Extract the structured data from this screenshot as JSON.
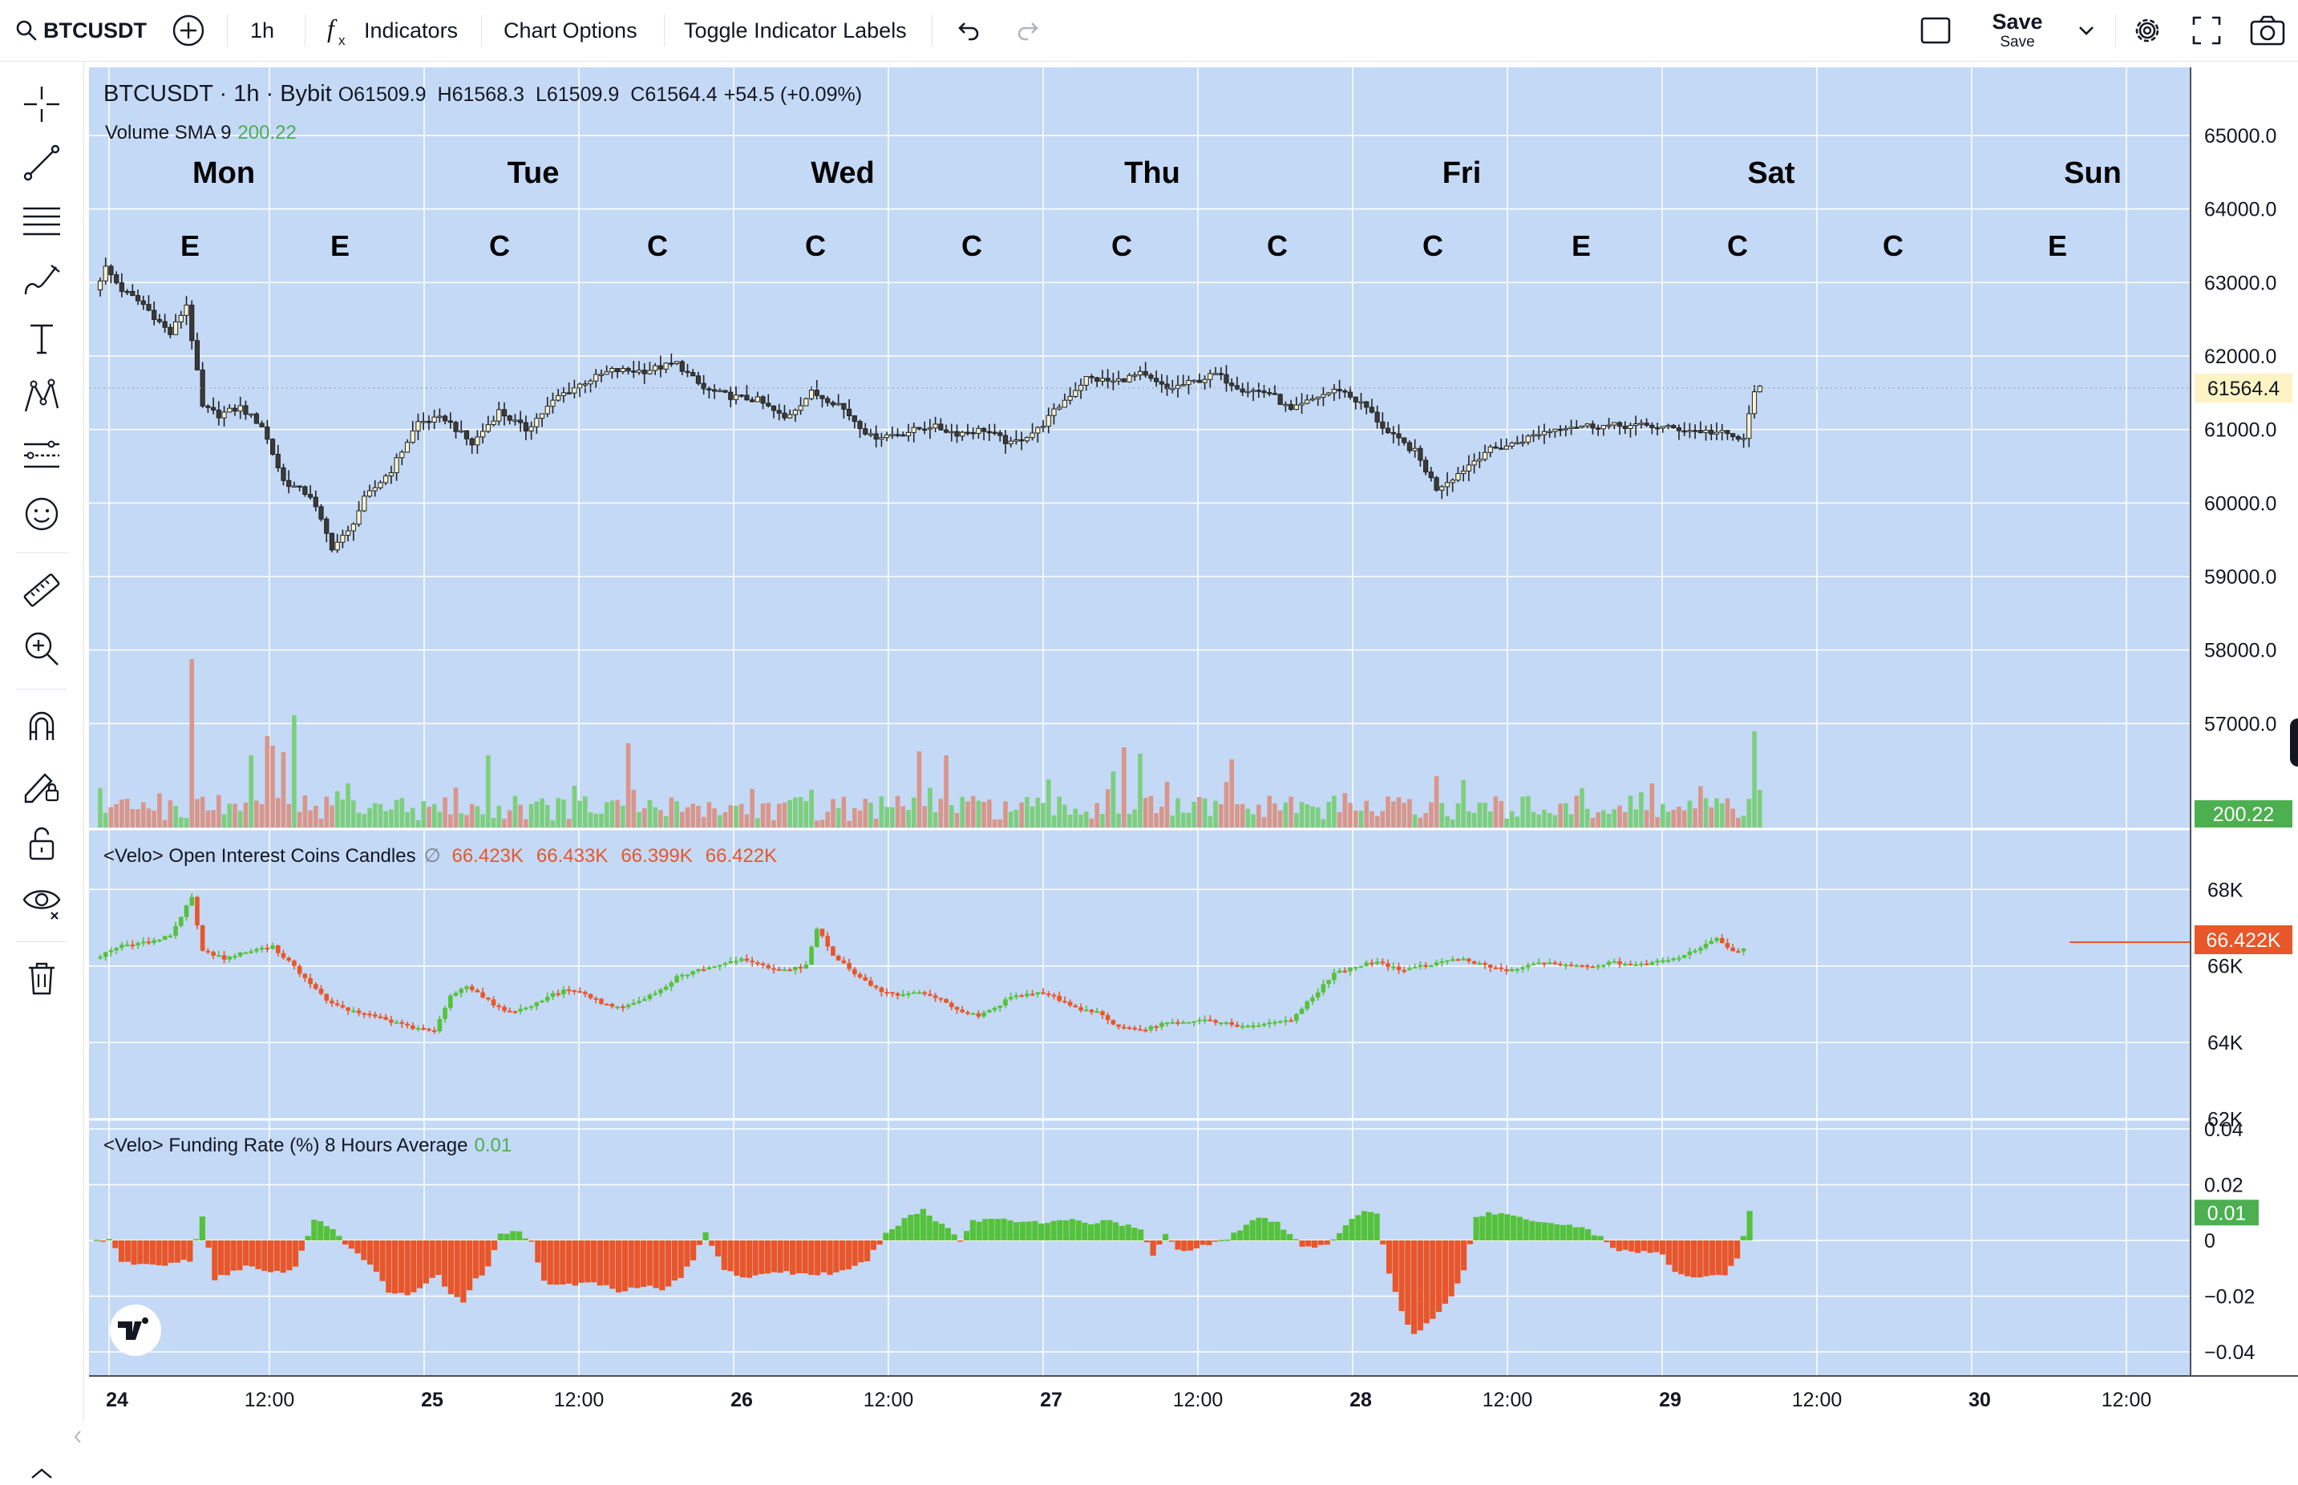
{
  "toolbar": {
    "symbol": "BTCUSDT",
    "interval": "1h",
    "indicators_label": "Indicators",
    "chart_options_label": "Chart Options",
    "toggle_labels_label": "Toggle Indicator Labels",
    "save_label": "Save",
    "save_sub_label": "Save"
  },
  "legend": {
    "main": {
      "title": "BTCUSDT · 1h · Bybit",
      "o_label": "O",
      "o_value": "61509.9",
      "h_label": "H",
      "h_value": "61568.3",
      "l_label": "L",
      "l_value": "61509.9",
      "c_label": "C",
      "c_value": "61564.4",
      "change": "+54.5 (+0.09%)"
    },
    "volume": {
      "label": "Volume  SMA 9",
      "value": "200.22"
    },
    "oi": {
      "label": "<Velo> Open Interest  Coins Candles",
      "flag": "∅",
      "o": "66.423K",
      "h": "66.433K",
      "l": "66.399K",
      "c": "66.422K"
    },
    "funding": {
      "label": "<Velo> Funding Rate (%) 8 Hours Average",
      "value": "0.01"
    }
  },
  "colors": {
    "background": "#c4d9f5",
    "grid": "#ffffff",
    "up_candle": "#faf3d0",
    "down_candle": "#3a3a3a",
    "volume_up": "#7ccf7c",
    "volume_down": "#d9968a",
    "oi_up": "#55c23b",
    "oi_down": "#e8562a",
    "funding_pos": "#55c23b",
    "funding_neg": "#e8562a",
    "price_label_bg": "#fdf3c4",
    "value_green": "#4caf50",
    "value_orange": "#e8562a"
  },
  "chart_data": {
    "type": "candlestick",
    "day_labels": [
      "Mon",
      "Tue",
      "Wed",
      "Thu",
      "Fri",
      "Sat",
      "Sun"
    ],
    "session_markers": [
      "E",
      "E",
      "C",
      "C",
      "C",
      "C",
      "C",
      "C",
      "C",
      "E",
      "C",
      "C",
      "E"
    ],
    "x_tick_labels": [
      "24",
      "12:00",
      "25",
      "12:00",
      "26",
      "12:00",
      "27",
      "12:00",
      "28",
      "12:00",
      "29",
      "12:00",
      "30",
      "12:00"
    ],
    "price_axis": {
      "ticks": [
        "65000.0",
        "64000.0",
        "63000.0",
        "62000.0",
        "61000.0",
        "60000.0",
        "59000.0",
        "58000.0",
        "57000.0"
      ],
      "ylim": [
        56000,
        65600
      ],
      "last_price": "61564.4"
    },
    "volume": {
      "last": "200.22"
    },
    "open_interest": {
      "ticks": [
        "68K",
        "66K",
        "64K",
        "62K"
      ],
      "ylim": [
        61700,
        69200
      ],
      "last": "66.422K"
    },
    "funding_rate": {
      "ticks": [
        "0.04",
        "0.02",
        "0",
        "−0.02",
        "−0.04"
      ],
      "ylim": [
        -0.04,
        0.04
      ],
      "last": "0.01"
    },
    "price_anchors": [
      [
        0,
        62900
      ],
      [
        2,
        63200
      ],
      [
        5,
        62900
      ],
      [
        9,
        62700
      ],
      [
        14,
        62300
      ],
      [
        17,
        62700
      ],
      [
        20,
        61300
      ],
      [
        23,
        61200
      ],
      [
        27,
        61300
      ],
      [
        31,
        61050
      ],
      [
        35,
        60300
      ],
      [
        40,
        60100
      ],
      [
        44,
        59400
      ],
      [
        47,
        59600
      ],
      [
        50,
        60050
      ],
      [
        55,
        60450
      ],
      [
        60,
        61100
      ],
      [
        65,
        61150
      ],
      [
        70,
        60800
      ],
      [
        75,
        61250
      ],
      [
        80,
        61000
      ],
      [
        86,
        61450
      ],
      [
        91,
        61650
      ],
      [
        96,
        61800
      ],
      [
        102,
        61800
      ],
      [
        108,
        61900
      ],
      [
        113,
        61550
      ],
      [
        118,
        61450
      ],
      [
        123,
        61400
      ],
      [
        128,
        61150
      ],
      [
        133,
        61500
      ],
      [
        138,
        61350
      ],
      [
        144,
        60900
      ],
      [
        150,
        60950
      ],
      [
        155,
        61050
      ],
      [
        160,
        60950
      ],
      [
        165,
        61000
      ],
      [
        170,
        60800
      ],
      [
        175,
        61000
      ],
      [
        180,
        61400
      ],
      [
        184,
        61700
      ],
      [
        189,
        61650
      ],
      [
        194,
        61750
      ],
      [
        199,
        61550
      ],
      [
        204,
        61650
      ],
      [
        208,
        61750
      ],
      [
        213,
        61550
      ],
      [
        218,
        61500
      ],
      [
        222,
        61250
      ],
      [
        227,
        61450
      ],
      [
        231,
        61550
      ],
      [
        236,
        61300
      ],
      [
        240,
        60950
      ],
      [
        245,
        60700
      ],
      [
        249,
        60200
      ],
      [
        253,
        60400
      ],
      [
        258,
        60700
      ],
      [
        263,
        60800
      ],
      [
        268,
        60950
      ],
      [
        273,
        61050
      ],
      [
        280,
        61050
      ],
      [
        288,
        61050
      ],
      [
        295,
        61000
      ],
      [
        302,
        60950
      ],
      [
        306,
        60850
      ],
      [
        308,
        61550
      ]
    ],
    "oi_anchors": [
      [
        0,
        66200
      ],
      [
        4,
        66500
      ],
      [
        9,
        66600
      ],
      [
        14,
        66800
      ],
      [
        18,
        67800
      ],
      [
        20,
        66400
      ],
      [
        24,
        66200
      ],
      [
        29,
        66400
      ],
      [
        33,
        66500
      ],
      [
        37,
        66000
      ],
      [
        40,
        65500
      ],
      [
        44,
        65000
      ],
      [
        48,
        64800
      ],
      [
        52,
        64700
      ],
      [
        56,
        64500
      ],
      [
        60,
        64350
      ],
      [
        63,
        64300
      ],
      [
        66,
        65200
      ],
      [
        69,
        65500
      ],
      [
        73,
        65100
      ],
      [
        76,
        64800
      ],
      [
        80,
        64900
      ],
      [
        84,
        65200
      ],
      [
        88,
        65400
      ],
      [
        92,
        65200
      ],
      [
        96,
        64900
      ],
      [
        100,
        65000
      ],
      [
        104,
        65300
      ],
      [
        108,
        65700
      ],
      [
        112,
        65900
      ],
      [
        116,
        66000
      ],
      [
        120,
        66200
      ],
      [
        124,
        66000
      ],
      [
        128,
        65900
      ],
      [
        132,
        66000
      ],
      [
        134,
        67000
      ],
      [
        137,
        66300
      ],
      [
        141,
        65800
      ],
      [
        145,
        65400
      ],
      [
        149,
        65200
      ],
      [
        153,
        65300
      ],
      [
        157,
        65100
      ],
      [
        161,
        64800
      ],
      [
        164,
        64700
      ],
      [
        167,
        64900
      ],
      [
        170,
        65200
      ],
      [
        174,
        65300
      ],
      [
        178,
        65200
      ],
      [
        182,
        64900
      ],
      [
        186,
        64800
      ],
      [
        190,
        64400
      ],
      [
        194,
        64300
      ],
      [
        198,
        64500
      ],
      [
        202,
        64500
      ],
      [
        206,
        64600
      ],
      [
        210,
        64500
      ],
      [
        214,
        64400
      ],
      [
        218,
        64500
      ],
      [
        222,
        64600
      ],
      [
        226,
        65200
      ],
      [
        230,
        65800
      ],
      [
        234,
        66000
      ],
      [
        238,
        66100
      ],
      [
        242,
        65900
      ],
      [
        246,
        66000
      ],
      [
        250,
        66100
      ],
      [
        254,
        66200
      ],
      [
        258,
        66000
      ],
      [
        262,
        65900
      ],
      [
        266,
        66000
      ],
      [
        270,
        66100
      ],
      [
        274,
        66000
      ],
      [
        278,
        66000
      ],
      [
        282,
        66100
      ],
      [
        286,
        66000
      ],
      [
        290,
        66100
      ],
      [
        294,
        66200
      ],
      [
        298,
        66500
      ],
      [
        301,
        66700
      ],
      [
        304,
        66400
      ],
      [
        306,
        66420
      ]
    ],
    "funding_anchors": [
      [
        0,
        0
      ],
      [
        2,
        0.001
      ],
      [
        4,
        -0.008
      ],
      [
        10,
        -0.009
      ],
      [
        15,
        -0.007
      ],
      [
        17,
        0.008
      ],
      [
        19,
        -0.014
      ],
      [
        24,
        -0.009
      ],
      [
        28,
        -0.012
      ],
      [
        32,
        -0.01
      ],
      [
        35,
        0.008
      ],
      [
        38,
        0.004
      ],
      [
        40,
        -0.002
      ],
      [
        44,
        -0.008
      ],
      [
        47,
        -0.018
      ],
      [
        50,
        -0.02
      ],
      [
        53,
        -0.015
      ],
      [
        55,
        -0.012
      ],
      [
        57,
        -0.02
      ],
      [
        59,
        -0.022
      ],
      [
        61,
        -0.014
      ],
      [
        63,
        -0.01
      ],
      [
        65,
        0.002
      ],
      [
        67,
        0.004
      ],
      [
        70,
        0
      ],
      [
        72,
        -0.015
      ],
      [
        76,
        -0.016
      ],
      [
        80,
        -0.015
      ],
      [
        84,
        -0.018
      ],
      [
        88,
        -0.016
      ],
      [
        91,
        -0.018
      ],
      [
        94,
        -0.013
      ],
      [
        96,
        -0.007
      ],
      [
        98,
        0.003
      ],
      [
        101,
        -0.01
      ],
      [
        105,
        -0.014
      ],
      [
        109,
        -0.011
      ],
      [
        113,
        -0.012
      ],
      [
        117,
        -0.012
      ],
      [
        121,
        -0.011
      ],
      [
        124,
        -0.007
      ],
      [
        127,
        0.002
      ],
      [
        129,
        0.006
      ],
      [
        131,
        0.009
      ],
      [
        133,
        0.011
      ],
      [
        135,
        0.007
      ],
      [
        137,
        0.005
      ],
      [
        139,
        0
      ],
      [
        141,
        0.007
      ],
      [
        145,
        0.008
      ],
      [
        149,
        0.007
      ],
      [
        153,
        0.006
      ],
      [
        157,
        0.008
      ],
      [
        160,
        0.006
      ],
      [
        163,
        0.007
      ],
      [
        166,
        0.005
      ],
      [
        168,
        0.004
      ],
      [
        170,
        -0.006
      ],
      [
        172,
        0.003
      ],
      [
        174,
        -0.003
      ],
      [
        176,
        -0.004
      ],
      [
        178,
        -0.002
      ],
      [
        180,
        0
      ],
      [
        182,
        0.001
      ],
      [
        184,
        0.004
      ],
      [
        186,
        0.007
      ],
      [
        188,
        0.008
      ],
      [
        190,
        0.006
      ],
      [
        192,
        0.002
      ],
      [
        194,
        -0.002
      ],
      [
        196,
        -0.002
      ],
      [
        198,
        -0.001
      ],
      [
        200,
        0.002
      ],
      [
        202,
        0.008
      ],
      [
        204,
        0.01
      ],
      [
        206,
        0.01
      ],
      [
        208,
        -0.012
      ],
      [
        210,
        -0.025
      ],
      [
        212,
        -0.034
      ],
      [
        214,
        -0.03
      ],
      [
        216,
        -0.026
      ],
      [
        218,
        -0.02
      ],
      [
        220,
        -0.01
      ],
      [
        222,
        0.008
      ],
      [
        224,
        0.01
      ],
      [
        228,
        0.009
      ],
      [
        232,
        0.007
      ],
      [
        236,
        0.006
      ],
      [
        240,
        0.004
      ],
      [
        242,
        0.001
      ],
      [
        244,
        -0.003
      ],
      [
        248,
        -0.004
      ],
      [
        252,
        -0.005
      ],
      [
        254,
        -0.012
      ],
      [
        258,
        -0.013
      ],
      [
        262,
        -0.012
      ],
      [
        264,
        -0.007
      ],
      [
        266,
        0.01
      ]
    ]
  }
}
